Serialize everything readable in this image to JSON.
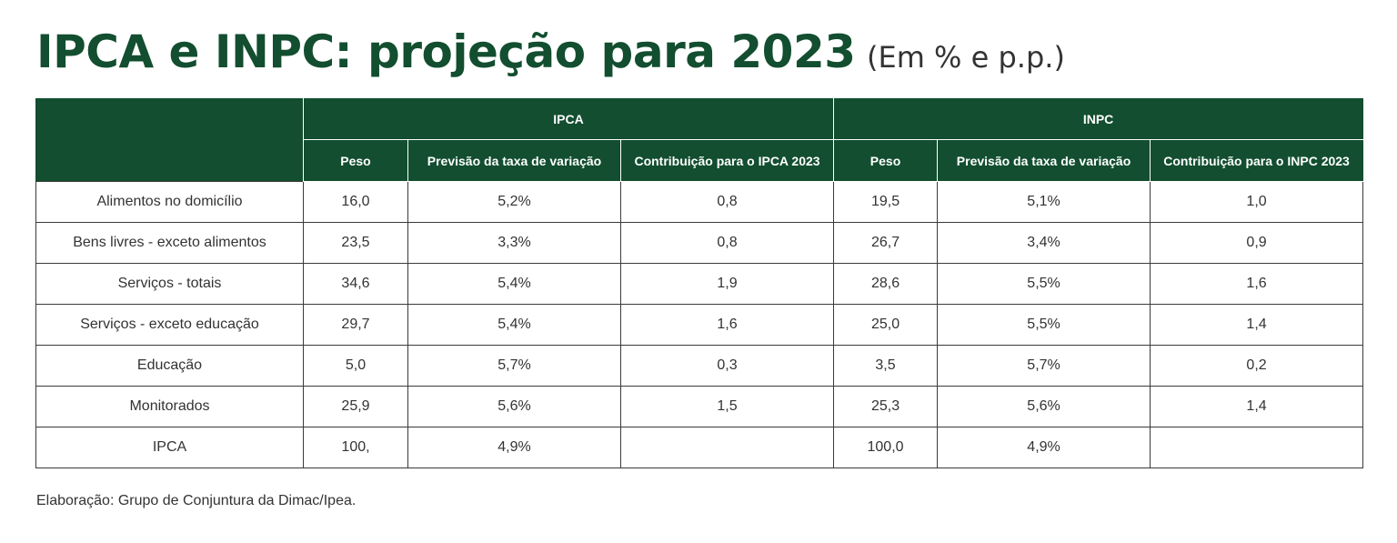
{
  "title": "IPCA e INPC: projeção para 2023",
  "subtitle": "(Em % e p.p.)",
  "group_headers": [
    "IPCA",
    "INPC"
  ],
  "col_headers": [
    "Peso",
    "Previsão da taxa de variação",
    "Contribuição para o IPCA 2023",
    "Peso",
    "Previsão da taxa de variação",
    "Contribuição para o INPC 2023"
  ],
  "colors": {
    "header_bg": "#124e2f",
    "title": "#124e2f"
  },
  "chart_data": {
    "type": "table",
    "columns": [
      "",
      "IPCA Peso",
      "IPCA Previsão da taxa de variação",
      "Contribuição para o IPCA 2023",
      "INPC Peso",
      "INPC Previsão da taxa de variação",
      "Contribuição para o INPC 2023"
    ],
    "rows": [
      [
        "Alimentos no domicílio",
        "16,0",
        "5,2%",
        "0,8",
        "19,5",
        "5,1%",
        "1,0"
      ],
      [
        "Bens livres - exceto alimentos",
        "23,5",
        "3,3%",
        "0,8",
        "26,7",
        "3,4%",
        "0,9"
      ],
      [
        "Serviços - totais",
        "34,6",
        "5,4%",
        "1,9",
        "28,6",
        "5,5%",
        "1,6"
      ],
      [
        "Serviços - exceto educação",
        "29,7",
        "5,4%",
        "1,6",
        "25,0",
        "5,5%",
        "1,4"
      ],
      [
        "Educação",
        "5,0",
        "5,7%",
        "0,3",
        "3,5",
        "5,7%",
        "0,2"
      ],
      [
        "Monitorados",
        "25,9",
        "5,6%",
        "1,5",
        "25,3",
        "5,6%",
        "1,4"
      ],
      [
        "IPCA",
        "100,",
        "4,9%",
        "",
        "100,0",
        "4,9%",
        ""
      ]
    ]
  },
  "footnote": "Elaboração: Grupo de Conjuntura da Dimac/Ipea."
}
